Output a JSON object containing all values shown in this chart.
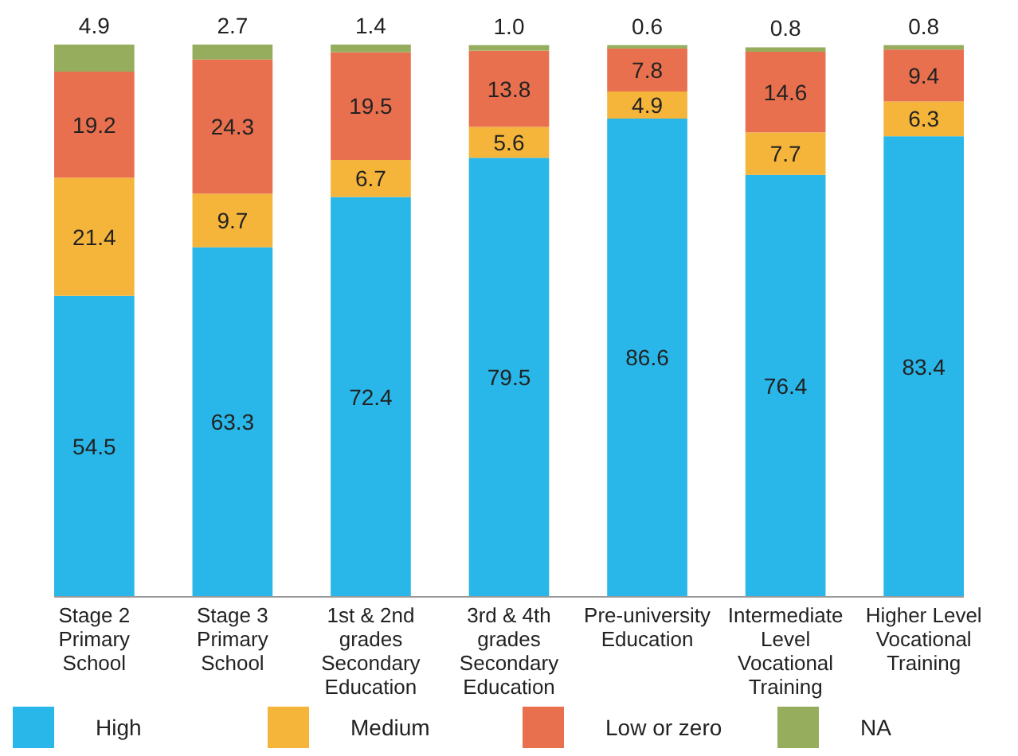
{
  "chart_data": {
    "type": "bar",
    "stacked": true,
    "legend": "bottom",
    "categories": [
      "Stage 2 Primary School",
      "Stage 3 Primary School",
      "1st & 2nd grades Secondary Education",
      "3rd & 4th grades Secondary Education",
      "Pre-university Education",
      "Intermediate Level Vocational Training",
      "Higher Level Vocational Training"
    ],
    "series": [
      {
        "name": "High",
        "color": "#29b6e8",
        "values": [
          54.5,
          63.3,
          72.4,
          79.5,
          86.6,
          76.4,
          83.4
        ],
        "value_labels": [
          "54.5",
          "63.3",
          "72.4",
          "79.5",
          "86.6",
          "76.4",
          "83.4"
        ]
      },
      {
        "name": "Medium",
        "color": "#f5b43a",
        "values": [
          21.4,
          9.7,
          6.7,
          5.6,
          4.9,
          7.7,
          6.3
        ],
        "value_labels": [
          "21.4",
          "9.7",
          "6.7",
          "5.6",
          "4.9",
          "7.7",
          "6.3"
        ]
      },
      {
        "name": "Low or zero",
        "color": "#e8704e",
        "values": [
          19.2,
          24.3,
          19.5,
          13.8,
          7.8,
          14.6,
          9.4
        ],
        "value_labels": [
          "19.2",
          "24.3",
          "19.5",
          "13.8",
          "7.8",
          "14.6",
          "9.4"
        ]
      },
      {
        "name": "NA",
        "color": "#97ad5e",
        "values": [
          4.9,
          2.7,
          1.4,
          1.0,
          0.6,
          0.8,
          0.8
        ],
        "value_labels": [
          "4.9",
          "2.7",
          "1.4",
          "1.0",
          "0.6",
          "0.8",
          "0.8"
        ]
      }
    ]
  }
}
